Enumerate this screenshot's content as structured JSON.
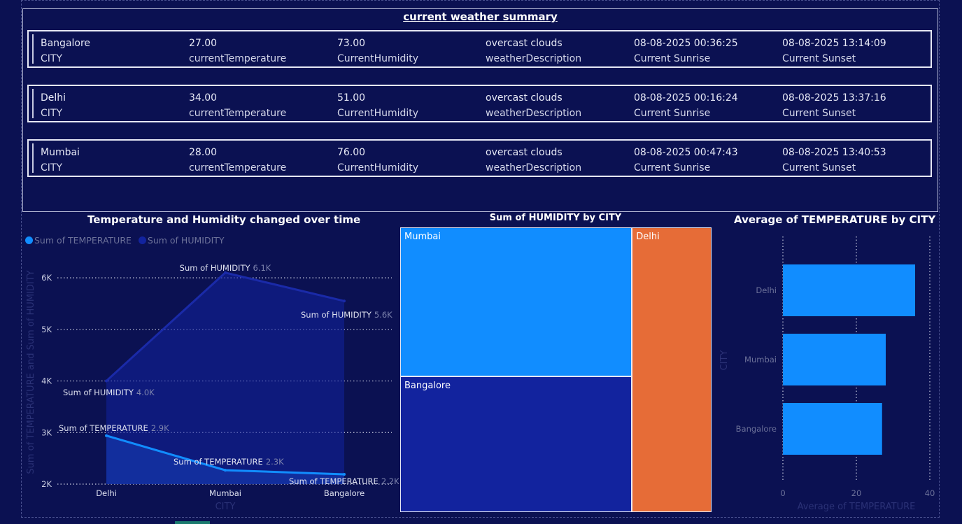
{
  "summary": {
    "title": "current weather summary",
    "cards": [
      {
        "city": "Bangalore",
        "city_label": "CITY",
        "temp": "27.00",
        "temp_label": "currentTemperature",
        "humidity": "73.00",
        "humidity_label": "CurrentHumidity",
        "desc": "overcast clouds",
        "desc_label": "weatherDescription",
        "sunrise": "08-08-2025 00:36:25",
        "sunrise_label": "Current Sunrise",
        "sunset": "08-08-2025 13:14:09",
        "sunset_label": "Current Sunset"
      },
      {
        "city": "Delhi",
        "city_label": "CITY",
        "temp": "34.00",
        "temp_label": "currentTemperature",
        "humidity": "51.00",
        "humidity_label": "CurrentHumidity",
        "desc": "overcast clouds",
        "desc_label": "weatherDescription",
        "sunrise": "08-08-2025 00:16:24",
        "sunrise_label": "Current Sunrise",
        "sunset": "08-08-2025 13:37:16",
        "sunset_label": "Current Sunset"
      },
      {
        "city": "Mumbai",
        "city_label": "CITY",
        "temp": "28.00",
        "temp_label": "currentTemperature",
        "humidity": "76.00",
        "humidity_label": "CurrentHumidity",
        "desc": "overcast clouds",
        "desc_label": "weatherDescription",
        "sunrise": "08-08-2025 00:47:43",
        "sunrise_label": "Current Sunrise",
        "sunset": "08-08-2025 13:40:53",
        "sunset_label": "Current Sunset"
      }
    ]
  },
  "colors": {
    "background": "#0b1152",
    "temperature": "#118dff",
    "humidity": "#12239e",
    "treemap_delhi": "#e66c37"
  },
  "chart_data": [
    {
      "type": "area",
      "title": "Temperature and Humidity changed over time",
      "xlabel": "CITY",
      "ylabel": "Sum of TEMPERATURE and Sum of HUMIDITY",
      "categories": [
        "Delhi",
        "Mumbai",
        "Bangalore"
      ],
      "yticks": [
        "2K",
        "3K",
        "4K",
        "5K",
        "6K"
      ],
      "ylim": [
        2000,
        6300
      ],
      "grid": true,
      "legend_position": "top-left",
      "series": [
        {
          "name": "Sum of TEMPERATURE",
          "values": [
            2940,
            2270,
            2190
          ],
          "data_labels": [
            "2.9K",
            "2.3K",
            "2.2K"
          ]
        },
        {
          "name": "Sum of HUMIDITY",
          "values": [
            4000,
            6100,
            5550
          ],
          "data_labels": [
            "4.0K",
            "6.1K",
            "5.6K"
          ]
        }
      ]
    },
    {
      "type": "treemap",
      "title": "Sum of HUMIDITY by CITY",
      "items": [
        {
          "label": "Mumbai",
          "value": 6100
        },
        {
          "label": "Bangalore",
          "value": 5550
        },
        {
          "label": "Delhi",
          "value": 4000
        }
      ]
    },
    {
      "type": "bar",
      "orientation": "horizontal",
      "title": "Average of TEMPERATURE by CITY",
      "xlabel": "Average of TEMPERATURE",
      "ylabel": "CITY",
      "categories": [
        "Delhi",
        "Mumbai",
        "Bangalore"
      ],
      "values": [
        36,
        28,
        27
      ],
      "xticks": [
        "0",
        "20",
        "40"
      ],
      "xlim": [
        0,
        40
      ],
      "grid": true
    }
  ]
}
